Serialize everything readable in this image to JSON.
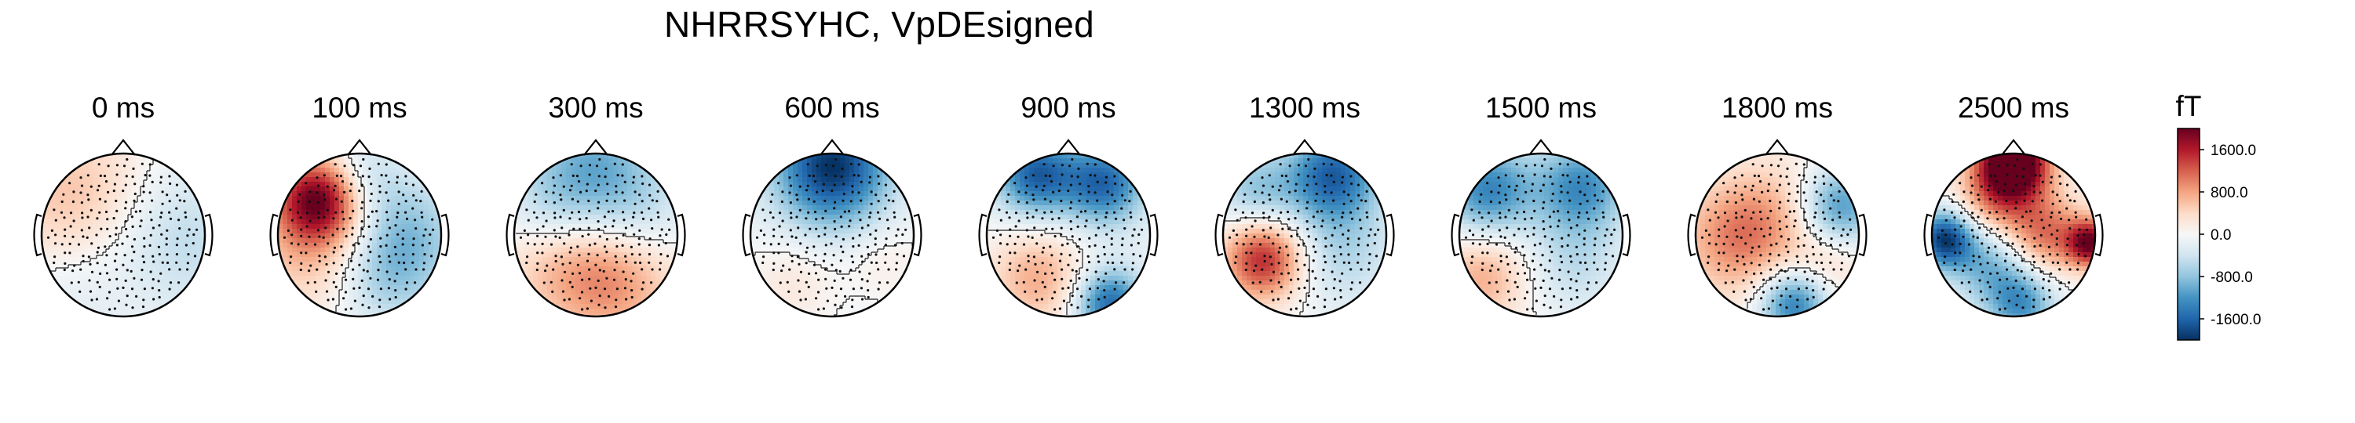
{
  "figure": {
    "title": "NHRRSYHC, VpDEsigned"
  },
  "panels": [
    {
      "time_label": "0 ms",
      "poles": [
        [
          -0.45,
          -0.25,
          0.55,
          0.7
        ],
        [
          -0.5,
          0.45,
          -0.3,
          0.6
        ],
        [
          0.45,
          0.05,
          -0.45,
          0.7
        ],
        [
          0.05,
          0.55,
          0.15,
          0.5
        ]
      ]
    },
    {
      "time_label": "100 ms",
      "poles": [
        [
          -0.5,
          -0.45,
          1.0,
          0.35
        ],
        [
          -0.4,
          0.05,
          0.55,
          0.6
        ],
        [
          0.45,
          0.05,
          -0.65,
          0.55
        ],
        [
          0.0,
          -0.75,
          -0.3,
          0.35
        ],
        [
          0.2,
          0.6,
          -0.25,
          0.45
        ]
      ]
    },
    {
      "time_label": "300 ms",
      "poles": [
        [
          0.0,
          -0.85,
          -0.55,
          0.55
        ],
        [
          0.2,
          0.55,
          0.55,
          0.55
        ],
        [
          -0.55,
          0.35,
          0.25,
          0.5
        ],
        [
          0.55,
          -0.25,
          -0.25,
          0.45
        ],
        [
          -0.55,
          -0.35,
          -0.25,
          0.45
        ]
      ]
    },
    {
      "time_label": "600 ms",
      "poles": [
        [
          0.0,
          -0.85,
          -1.15,
          0.5
        ],
        [
          0.0,
          0.15,
          -0.1,
          0.8
        ],
        [
          -0.45,
          0.55,
          0.2,
          0.4
        ],
        [
          0.6,
          0.3,
          0.15,
          0.35
        ]
      ]
    },
    {
      "time_label": "900 ms",
      "poles": [
        [
          -0.4,
          -0.75,
          -0.9,
          0.35
        ],
        [
          0.45,
          -0.65,
          -0.85,
          0.35
        ],
        [
          -0.35,
          0.5,
          0.55,
          0.45
        ],
        [
          0.5,
          0.85,
          -0.9,
          0.3
        ],
        [
          0.0,
          0.0,
          -0.15,
          0.8
        ]
      ]
    },
    {
      "time_label": "1300 ms",
      "poles": [
        [
          0.35,
          -0.75,
          -0.95,
          0.4
        ],
        [
          -0.5,
          0.3,
          0.95,
          0.35
        ],
        [
          0.45,
          0.2,
          -0.35,
          0.5
        ],
        [
          -0.6,
          -0.55,
          -0.45,
          0.35
        ]
      ]
    },
    {
      "time_label": "1500 ms",
      "poles": [
        [
          -0.65,
          -0.55,
          -0.8,
          0.4
        ],
        [
          0.5,
          -0.6,
          -0.75,
          0.4
        ],
        [
          -0.7,
          0.5,
          0.45,
          0.4
        ],
        [
          0.4,
          0.35,
          -0.3,
          0.45
        ]
      ]
    },
    {
      "time_label": "1800 ms",
      "poles": [
        [
          -0.5,
          0.05,
          0.55,
          0.5
        ],
        [
          0.75,
          -0.35,
          -0.75,
          0.35
        ],
        [
          0.2,
          0.85,
          -0.85,
          0.3
        ],
        [
          0.05,
          -0.3,
          0.25,
          0.5
        ],
        [
          0.65,
          0.35,
          0.2,
          0.3
        ]
      ]
    },
    {
      "time_label": "2500 ms",
      "poles": [
        [
          0.0,
          -0.9,
          1.55,
          0.3
        ],
        [
          -0.85,
          0.05,
          -1.1,
          0.25
        ],
        [
          0.4,
          0.0,
          0.65,
          0.35
        ],
        [
          -0.3,
          0.35,
          -0.55,
          0.35
        ],
        [
          0.95,
          0.1,
          1.1,
          0.2
        ],
        [
          0.1,
          0.85,
          -0.7,
          0.3
        ],
        [
          -0.2,
          -0.45,
          0.55,
          0.35
        ]
      ]
    }
  ],
  "colorbar": {
    "unit": "fT",
    "ticks": [
      "1600.0",
      "800.0",
      "0.0",
      "-800.0",
      "-1600.0"
    ],
    "tick_values": [
      1600,
      800,
      0,
      -800,
      -1600
    ],
    "range": [
      -2000,
      2000
    ],
    "colormap": [
      "#053061",
      "#2166ac",
      "#4393c3",
      "#92c5de",
      "#d1e5f0",
      "#f7f7f7",
      "#fddbc7",
      "#f4a582",
      "#d6604d",
      "#b2182b",
      "#67001f"
    ]
  }
}
